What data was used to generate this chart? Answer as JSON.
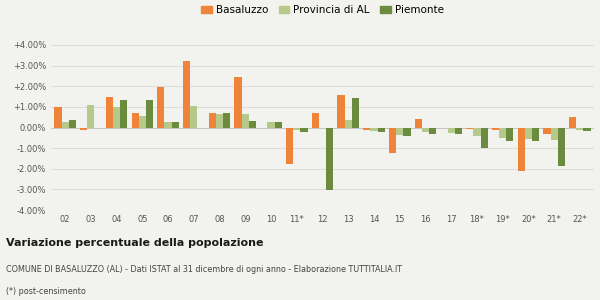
{
  "years": [
    "02",
    "03",
    "04",
    "05",
    "06",
    "07",
    "08",
    "09",
    "10",
    "11*",
    "12",
    "13",
    "14",
    "15",
    "16",
    "17",
    "18*",
    "19*",
    "20*",
    "21*",
    "22*"
  ],
  "basaluzzo": [
    1.0,
    -0.1,
    1.5,
    0.7,
    1.95,
    3.2,
    0.7,
    2.45,
    -0.02,
    -1.75,
    0.7,
    1.6,
    -0.1,
    -1.25,
    0.4,
    0.0,
    -0.05,
    -0.1,
    -2.1,
    -0.3,
    0.5
  ],
  "provincia_al": [
    0.25,
    1.1,
    1.0,
    0.55,
    0.25,
    1.05,
    0.65,
    0.65,
    0.25,
    -0.1,
    0.0,
    0.35,
    -0.15,
    -0.35,
    -0.2,
    -0.25,
    -0.4,
    -0.5,
    -0.55,
    -0.6,
    -0.1
  ],
  "piemonte": [
    0.35,
    0.0,
    1.35,
    1.35,
    0.25,
    0.0,
    0.7,
    0.3,
    0.25,
    -0.2,
    -3.05,
    1.45,
    -0.2,
    -0.4,
    -0.3,
    -0.3,
    -1.0,
    -0.65,
    -0.65,
    -1.85,
    -0.15
  ],
  "color_basaluzzo": "#f0833a",
  "color_provincia": "#b5c98a",
  "color_piemonte": "#6b8c3e",
  "bg_color": "#f2f2ee",
  "grid_color": "#d8d8d8",
  "ylim": [
    -4.0,
    4.0
  ],
  "yticks": [
    -4.0,
    -3.0,
    -2.0,
    -1.0,
    0.0,
    1.0,
    2.0,
    3.0,
    4.0
  ],
  "title_bold": "Variazione percentuale della popolazione",
  "footer1": "COMUNE DI BASALUZZO (AL) - Dati ISTAT al 31 dicembre di ogni anno - Elaborazione TUTTITALIA.IT",
  "footer2": "(*) post-censimento"
}
